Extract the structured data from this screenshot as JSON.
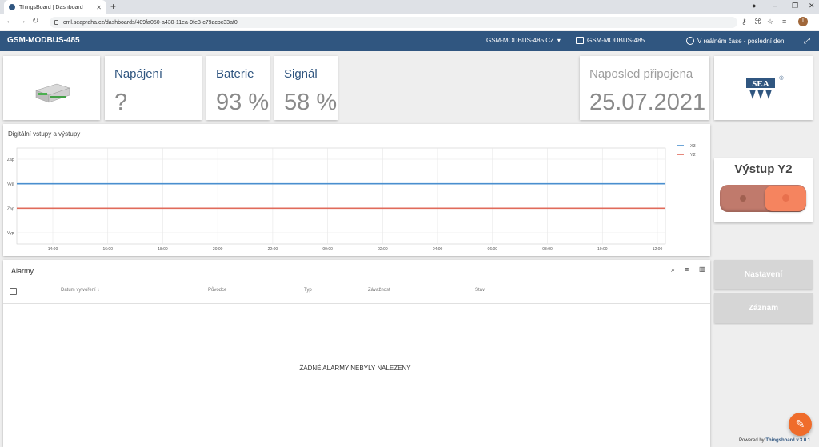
{
  "browser": {
    "tab_title": "ThingsBoard | Dashboard",
    "url": "cml.seapraha.cz/dashboards/409fa050-a430-11ea-9fe3-c79acbc33af0"
  },
  "toolbar": {
    "title": "GSM-MODBUS-485",
    "dashboard_select": "GSM-MODBUS-485 CZ",
    "entity": "GSM-MODBUS-485",
    "timewindow": "V reálném čase - poslední den"
  },
  "cards": {
    "napajeni": {
      "label": "Napájení",
      "value": "?"
    },
    "baterie": {
      "label": "Baterie",
      "value": "93 %"
    },
    "signal": {
      "label": "Signál",
      "value": "58 %"
    },
    "naposled": {
      "label": "Naposled připojena",
      "value": "25.07.2021"
    }
  },
  "chart_data": {
    "type": "line",
    "title": "Digitální vstupy a výstupy",
    "x": [
      "14:00",
      "16:00",
      "18:00",
      "20:00",
      "22:00",
      "00:00",
      "02:00",
      "04:00",
      "06:00",
      "08:00",
      "10:00",
      "12:00"
    ],
    "y_tick_labels": [
      "Zap",
      "Vyp",
      "Zap",
      "Vyp"
    ],
    "series": [
      {
        "name": "X3",
        "color": "#4a8fcf",
        "value": "Vyp"
      },
      {
        "name": "Y2",
        "color": "#e06b5b",
        "value": "Zap"
      }
    ],
    "grid": true,
    "legend": "top-right"
  },
  "alarms": {
    "title": "Alarmy",
    "columns": [
      "Datum vytvoření",
      "Původce",
      "Typ",
      "Závažnost",
      "Stav"
    ],
    "empty_message": "ŽÁDNÉ ALARMY NEBYLY NALEZENY"
  },
  "right_panel": {
    "output_title": "Výstup Y2",
    "output_state": "on",
    "btn_settings": "Nastavení",
    "btn_log": "Záznam"
  },
  "footer": {
    "powered_prefix": "Powered by",
    "powered_brand": "Thingsboard v.3.0.1"
  },
  "colors": {
    "primary": "#305680",
    "accent": "#ef6c2b"
  }
}
